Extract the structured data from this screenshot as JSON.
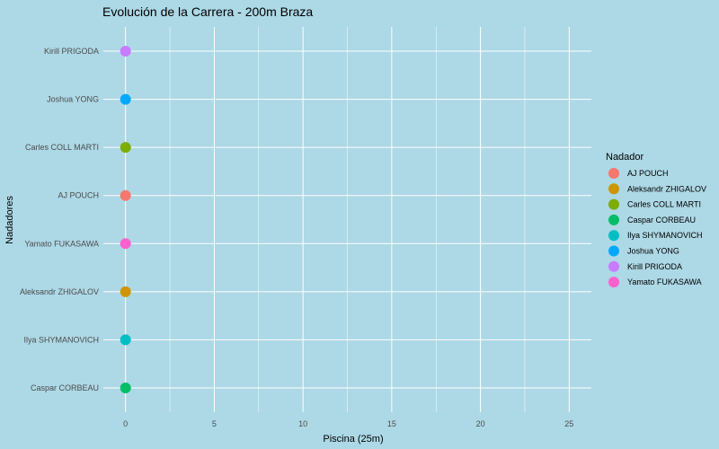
{
  "chart_data": {
    "type": "scatter",
    "title": "Evolución de la Carrera - 200m Braza",
    "xlabel": "Piscina (25m)",
    "ylabel": "Nadadores",
    "xlim": [
      -1.25,
      26.25
    ],
    "xticks": [
      0,
      5,
      10,
      15,
      20,
      25
    ],
    "xtick_labels": [
      "0",
      "5",
      "10",
      "15",
      "20",
      "25"
    ],
    "minor_xticks": [
      2.5,
      7.5,
      12.5,
      17.5,
      22.5
    ],
    "grid": true,
    "categories": [
      "Caspar CORBEAU",
      "Ilya SHYMANOVICH",
      "Aleksandr ZHIGALOV",
      "Yamato FUKASAWA",
      "AJ POUCH",
      "Carles COLL MARTI",
      "Joshua YONG",
      "Kirill PRIGODA"
    ],
    "points": [
      {
        "swimmer": "Caspar CORBEAU",
        "x": 0,
        "color": "#00be67"
      },
      {
        "swimmer": "Ilya SHYMANOVICH",
        "x": 0,
        "color": "#00bfc4"
      },
      {
        "swimmer": "Aleksandr ZHIGALOV",
        "x": 0,
        "color": "#cd9600"
      },
      {
        "swimmer": "Yamato FUKASAWA",
        "x": 0,
        "color": "#ff61cc"
      },
      {
        "swimmer": "AJ POUCH",
        "x": 0,
        "color": "#f8766d"
      },
      {
        "swimmer": "Carles COLL MARTI",
        "x": 0,
        "color": "#7cae00"
      },
      {
        "swimmer": "Joshua YONG",
        "x": 0,
        "color": "#00a9ff"
      },
      {
        "swimmer": "Kirill PRIGODA",
        "x": 0,
        "color": "#c77cff"
      }
    ],
    "legend": {
      "title": "Nadador",
      "position": "right",
      "entries": [
        {
          "label": "AJ POUCH",
          "color": "#f8766d"
        },
        {
          "label": "Aleksandr ZHIGALOV",
          "color": "#cd9600"
        },
        {
          "label": "Carles COLL MARTI",
          "color": "#7cae00"
        },
        {
          "label": "Caspar CORBEAU",
          "color": "#00be67"
        },
        {
          "label": "Ilya SHYMANOVICH",
          "color": "#00bfc4"
        },
        {
          "label": "Joshua YONG",
          "color": "#00a9ff"
        },
        {
          "label": "Kirill PRIGODA",
          "color": "#c77cff"
        },
        {
          "label": "Yamato FUKASAWA",
          "color": "#ff61cc"
        }
      ]
    },
    "background_color": "#add8e6",
    "grid_color": "#ffffff"
  }
}
